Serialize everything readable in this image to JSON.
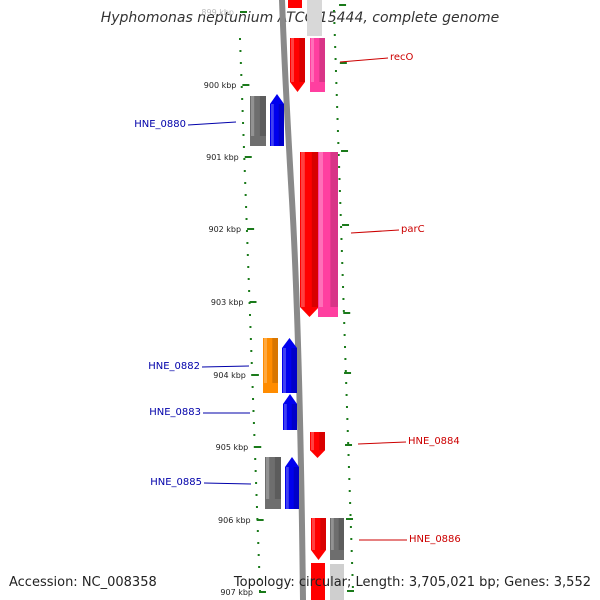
{
  "title": "Hyphomonas neptunium ATCC 15444, complete genome",
  "accession": "Accession: NC_008358",
  "topology": "Topology: circular; Length: 3,705,021 bp; Genes: 3,552",
  "scale_labels": [
    "899 kbp",
    "900 kbp",
    "901 kbp",
    "902 kbp",
    "903 kbp",
    "904 kbp",
    "905 kbp",
    "906 kbp",
    "907 kbp"
  ],
  "colors": {
    "red": "#ff0000",
    "pink": "#ff3fa0",
    "gray": "#6e6e6e",
    "blue": "#0000ee",
    "orange": "#ff8c00",
    "backbone": "#8a8a8a",
    "tick": "#1a7a1a",
    "label_red": "#cc0000",
    "label_blue": "#0000aa"
  },
  "genes": [
    {
      "label": "recO",
      "strand": "plus",
      "color": "red"
    },
    {
      "label": "",
      "strand": "plus",
      "color": "pink"
    },
    {
      "label": "HNE_0880",
      "strand": "minus",
      "color": "blue"
    },
    {
      "label": "",
      "strand": "minus",
      "color": "gray"
    },
    {
      "label": "parC",
      "strand": "plus",
      "color": "red"
    },
    {
      "label": "",
      "strand": "plus",
      "color": "pink"
    },
    {
      "label": "HNE_0882",
      "strand": "minus",
      "color": "blue"
    },
    {
      "label": "",
      "strand": "minus",
      "color": "orange"
    },
    {
      "label": "HNE_0883",
      "strand": "minus",
      "color": "blue"
    },
    {
      "label": "HNE_0884",
      "strand": "plus",
      "color": "red"
    },
    {
      "label": "HNE_0885",
      "strand": "minus",
      "color": "blue"
    },
    {
      "label": "",
      "strand": "minus",
      "color": "gray"
    },
    {
      "label": "HNE_0886",
      "strand": "plus",
      "color": "red"
    },
    {
      "label": "",
      "strand": "plus",
      "color": "gray"
    }
  ]
}
